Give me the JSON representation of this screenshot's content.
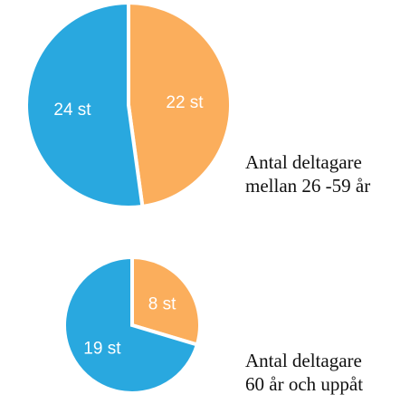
{
  "colors": {
    "blue": "#29a8df",
    "orange": "#fbae5c",
    "separator": "#ffffff"
  },
  "chart_data": [
    {
      "type": "pie",
      "categories": [
        "24 st",
        "22 st"
      ],
      "values": [
        24,
        22
      ],
      "slice_labels": [
        "24 st",
        "22 st"
      ],
      "slice_colors": [
        "#29a8df",
        "#fbae5c"
      ],
      "caption_lines": [
        "Antal deltagare",
        "mellan 26 -59 år"
      ]
    },
    {
      "type": "pie",
      "categories": [
        "19 st",
        "8 st"
      ],
      "values": [
        19,
        8
      ],
      "slice_labels": [
        "19 st",
        "8 st"
      ],
      "slice_colors": [
        "#29a8df",
        "#fbae5c"
      ],
      "caption_lines": [
        "Antal deltagare",
        "60 år och uppåt"
      ]
    }
  ]
}
